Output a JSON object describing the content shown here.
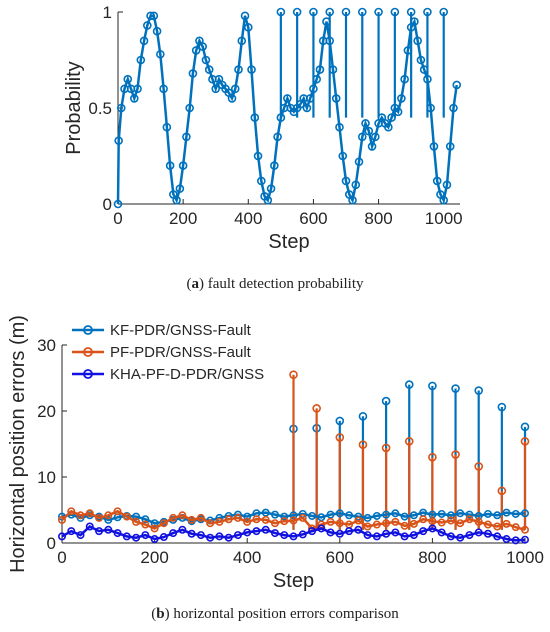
{
  "captions": {
    "a_label": "a",
    "a_text": "fault detection probability",
    "b_label": "b",
    "b_text": "horizontal position errors comparison"
  },
  "colors": {
    "blue": "#0072BD",
    "orange": "#D95319",
    "darkblue": "#1010E0",
    "axis": "#262626"
  },
  "chart_data": [
    {
      "type": "line",
      "title": "",
      "xlabel": "Step",
      "ylabel": "Probability",
      "xlim": [
        0,
        1050
      ],
      "ylim": [
        0,
        1
      ],
      "xticks": [
        0,
        200,
        400,
        600,
        800,
        1000
      ],
      "yticks": [
        0,
        0.5,
        1
      ],
      "ytick_labels": [
        "0",
        "0.5",
        "1"
      ],
      "grid": false,
      "marker": "circle",
      "series": [
        {
          "color": "#0072BD",
          "x": [
            0,
            2,
            10,
            20,
            30,
            40,
            50,
            60,
            70,
            80,
            90,
            100,
            110,
            120,
            130,
            140,
            150,
            160,
            170,
            180,
            190,
            200,
            210,
            220,
            230,
            240,
            250,
            260,
            270,
            280,
            290,
            300,
            310,
            320,
            330,
            340,
            350,
            360,
            370,
            380,
            390,
            400,
            410,
            420,
            430,
            440,
            450,
            460,
            470,
            480,
            490,
            500,
            510,
            520,
            530,
            540,
            550,
            560,
            570,
            580,
            590,
            600,
            610,
            620,
            630,
            640,
            650,
            660,
            670,
            680,
            690,
            700,
            710,
            720,
            730,
            740,
            750,
            760,
            770,
            780,
            790,
            800,
            810,
            820,
            830,
            840,
            850,
            860,
            870,
            880,
            890,
            900,
            910,
            920,
            930,
            940,
            950,
            960,
            970,
            980,
            990,
            1000,
            1010,
            1020,
            1030,
            1040
          ],
          "y": [
            0,
            0.33,
            0.5,
            0.6,
            0.65,
            0.6,
            0.55,
            0.6,
            0.75,
            0.85,
            0.93,
            0.98,
            0.98,
            0.9,
            0.78,
            0.6,
            0.4,
            0.2,
            0.05,
            0.02,
            0.08,
            0.2,
            0.35,
            0.5,
            0.68,
            0.8,
            0.85,
            0.82,
            0.75,
            0.7,
            0.65,
            0.6,
            0.65,
            0.62,
            0.6,
            0.58,
            0.55,
            0.6,
            0.7,
            0.85,
            0.98,
            0.92,
            0.7,
            0.45,
            0.25,
            0.12,
            0.04,
            0.02,
            0.08,
            0.2,
            0.35,
            0.45,
            0.5,
            0.55,
            0.5,
            0.48,
            0.5,
            0.52,
            0.55,
            0.5,
            0.55,
            0.6,
            0.65,
            0.7,
            0.85,
            0.95,
            0.85,
            0.7,
            0.55,
            0.4,
            0.25,
            0.12,
            0.05,
            0.02,
            0.1,
            0.22,
            0.35,
            0.42,
            0.38,
            0.3,
            0.35,
            0.42,
            0.45,
            0.42,
            0.4,
            0.45,
            0.5,
            0.48,
            0.55,
            0.65,
            0.8,
            0.92,
            0.95,
            0.85,
            0.75,
            0.7,
            0.65,
            0.5,
            0.3,
            0.12,
            0.05,
            0.02,
            0.1,
            0.3,
            0.5,
            0.62
          ]
        }
      ],
      "spikes": [
        {
          "x": 500,
          "y": 1
        },
        {
          "x": 550,
          "y": 1
        },
        {
          "x": 600,
          "y": 1
        },
        {
          "x": 650,
          "y": 1
        },
        {
          "x": 700,
          "y": 1
        },
        {
          "x": 750,
          "y": 1
        },
        {
          "x": 800,
          "y": 1
        },
        {
          "x": 850,
          "y": 1
        },
        {
          "x": 900,
          "y": 1
        },
        {
          "x": 950,
          "y": 1
        },
        {
          "x": 1000,
          "y": 1
        }
      ]
    },
    {
      "type": "line",
      "title": "",
      "xlabel": "Step",
      "ylabel": "Horizontal position errors (m)",
      "xlim": [
        0,
        1000
      ],
      "ylim": [
        0,
        30
      ],
      "xticks": [
        0,
        200,
        400,
        600,
        800,
        1000
      ],
      "yticks": [
        0,
        10,
        20,
        30
      ],
      "grid": false,
      "legend_position": "top-left",
      "marker": "circle",
      "series": [
        {
          "name": "KF-PDR/GNSS-Fault",
          "color": "#0072BD",
          "x": [
            0,
            20,
            40,
            60,
            80,
            100,
            120,
            140,
            160,
            180,
            200,
            220,
            240,
            260,
            280,
            300,
            320,
            340,
            360,
            380,
            400,
            420,
            440,
            460,
            480,
            500,
            520,
            540,
            560,
            580,
            600,
            620,
            640,
            660,
            680,
            700,
            720,
            740,
            760,
            780,
            800,
            820,
            840,
            860,
            880,
            900,
            920,
            940,
            960,
            980,
            1000
          ],
          "y": [
            4.0,
            4.3,
            3.8,
            4.2,
            4.0,
            3.5,
            3.9,
            4.1,
            4.0,
            3.6,
            3.0,
            3.2,
            3.5,
            3.8,
            3.3,
            3.6,
            3.4,
            3.8,
            4.1,
            4.3,
            4.0,
            4.5,
            4.6,
            4.3,
            4.0,
            4.2,
            4.4,
            4.1,
            3.9,
            4.3,
            4.5,
            4.2,
            4.0,
            3.8,
            4.1,
            4.3,
            4.5,
            4.0,
            4.2,
            4.6,
            4.3,
            4.4,
            4.2,
            4.5,
            4.3,
            4.1,
            4.4,
            4.2,
            4.6,
            4.4,
            4.5
          ]
        },
        {
          "name": "PF-PDR/GNSS-Fault",
          "color": "#D95319",
          "x": [
            0,
            20,
            40,
            60,
            80,
            100,
            120,
            140,
            160,
            180,
            200,
            220,
            240,
            260,
            280,
            300,
            320,
            340,
            360,
            380,
            400,
            420,
            440,
            460,
            480,
            500,
            520,
            540,
            560,
            580,
            600,
            620,
            640,
            660,
            680,
            700,
            720,
            740,
            760,
            780,
            800,
            820,
            840,
            860,
            880,
            900,
            920,
            940,
            960,
            980,
            1000
          ],
          "y": [
            3.5,
            4.8,
            4.2,
            4.5,
            3.8,
            4.2,
            4.8,
            4.0,
            3.2,
            2.8,
            2.2,
            3.0,
            3.8,
            4.2,
            3.5,
            3.8,
            3.0,
            3.2,
            3.6,
            3.8,
            3.2,
            3.6,
            3.5,
            3.0,
            3.3,
            3.4,
            3.8,
            2.2,
            2.8,
            3.2,
            3.0,
            2.8,
            3.4,
            2.5,
            2.8,
            3.0,
            3.2,
            2.6,
            2.9,
            3.6,
            3.3,
            3.1,
            3.4,
            3.0,
            3.6,
            3.2,
            2.8,
            2.5,
            2.9,
            2.4,
            2.0
          ]
        },
        {
          "name": "KHA-PF-D-PDR/GNSS",
          "color": "#1010E0",
          "x": [
            0,
            20,
            40,
            60,
            80,
            100,
            120,
            140,
            160,
            180,
            200,
            220,
            240,
            260,
            280,
            300,
            320,
            340,
            360,
            380,
            400,
            420,
            440,
            460,
            480,
            500,
            520,
            540,
            560,
            580,
            600,
            620,
            640,
            660,
            680,
            700,
            720,
            740,
            760,
            780,
            800,
            820,
            840,
            860,
            880,
            900,
            920,
            940,
            960,
            980,
            1000
          ],
          "y": [
            1.0,
            1.8,
            1.2,
            2.5,
            1.8,
            2.0,
            1.5,
            1.0,
            0.8,
            1.2,
            0.6,
            0.9,
            1.5,
            2.0,
            1.4,
            1.2,
            0.8,
            1.0,
            0.8,
            1.2,
            1.6,
            1.8,
            2.0,
            1.5,
            1.2,
            1.0,
            1.3,
            1.8,
            2.2,
            1.6,
            1.4,
            1.8,
            2.0,
            1.2,
            1.0,
            1.4,
            1.6,
            1.0,
            1.2,
            1.8,
            2.2,
            1.6,
            1.0,
            0.8,
            1.2,
            1.6,
            1.4,
            1.0,
            0.6,
            0.4,
            0.5
          ]
        }
      ],
      "fault_spikes_kf": [
        {
          "x": 500,
          "y": 17.3
        },
        {
          "x": 550,
          "y": 17.4
        },
        {
          "x": 600,
          "y": 18.5
        },
        {
          "x": 650,
          "y": 19.2
        },
        {
          "x": 700,
          "y": 21.5
        },
        {
          "x": 750,
          "y": 24.0
        },
        {
          "x": 800,
          "y": 23.8
        },
        {
          "x": 850,
          "y": 23.4
        },
        {
          "x": 900,
          "y": 23.1
        },
        {
          "x": 950,
          "y": 20.6
        },
        {
          "x": 1000,
          "y": 17.6
        }
      ],
      "fault_spikes_pf": [
        {
          "x": 500,
          "y": 25.5
        },
        {
          "x": 550,
          "y": 20.4
        },
        {
          "x": 600,
          "y": 16.0
        },
        {
          "x": 650,
          "y": 14.9
        },
        {
          "x": 700,
          "y": 14.4
        },
        {
          "x": 750,
          "y": 15.4
        },
        {
          "x": 800,
          "y": 13.0
        },
        {
          "x": 850,
          "y": 13.4
        },
        {
          "x": 900,
          "y": 11.6
        },
        {
          "x": 950,
          "y": 7.9
        },
        {
          "x": 1000,
          "y": 15.4
        }
      ]
    }
  ]
}
